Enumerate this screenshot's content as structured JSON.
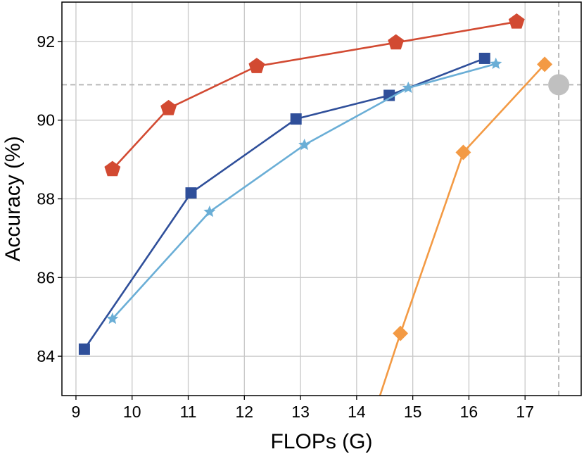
{
  "chart_data": {
    "type": "line",
    "xlabel": "FLOPs (G)",
    "ylabel": "Accuracy (%)",
    "xlim": [
      8.75,
      18.0
    ],
    "ylim": [
      83.0,
      93.0
    ],
    "xticks": [
      9,
      10,
      11,
      12,
      13,
      14,
      15,
      16,
      17
    ],
    "yticks": [
      84,
      86,
      88,
      90,
      92
    ],
    "grid": true,
    "series": [
      {
        "color": "#d24a32",
        "marker": "pentagon",
        "x": [
          9.65,
          10.65,
          12.22,
          14.7,
          16.85
        ],
        "y": [
          88.75,
          90.3,
          91.37,
          91.97,
          92.5
        ]
      },
      {
        "color": "#2f4f9a",
        "marker": "square",
        "x": [
          9.15,
          11.05,
          12.92,
          14.58,
          16.28
        ],
        "y": [
          84.18,
          88.15,
          90.03,
          90.63,
          91.57
        ]
      },
      {
        "color": "#6aaed6",
        "marker": "star",
        "x": [
          9.65,
          11.38,
          13.07,
          14.92,
          16.48
        ],
        "y": [
          84.95,
          87.67,
          89.37,
          90.82,
          91.43
        ]
      },
      {
        "color": "#f39a44",
        "marker": "diamond",
        "x": [
          14.37,
          14.78,
          15.9,
          17.35
        ],
        "y": [
          82.8,
          84.58,
          89.18,
          91.42
        ]
      }
    ],
    "reference_point": {
      "x": 17.6,
      "y": 90.9,
      "color": "#c0c0c0",
      "marker": "circle"
    }
  }
}
